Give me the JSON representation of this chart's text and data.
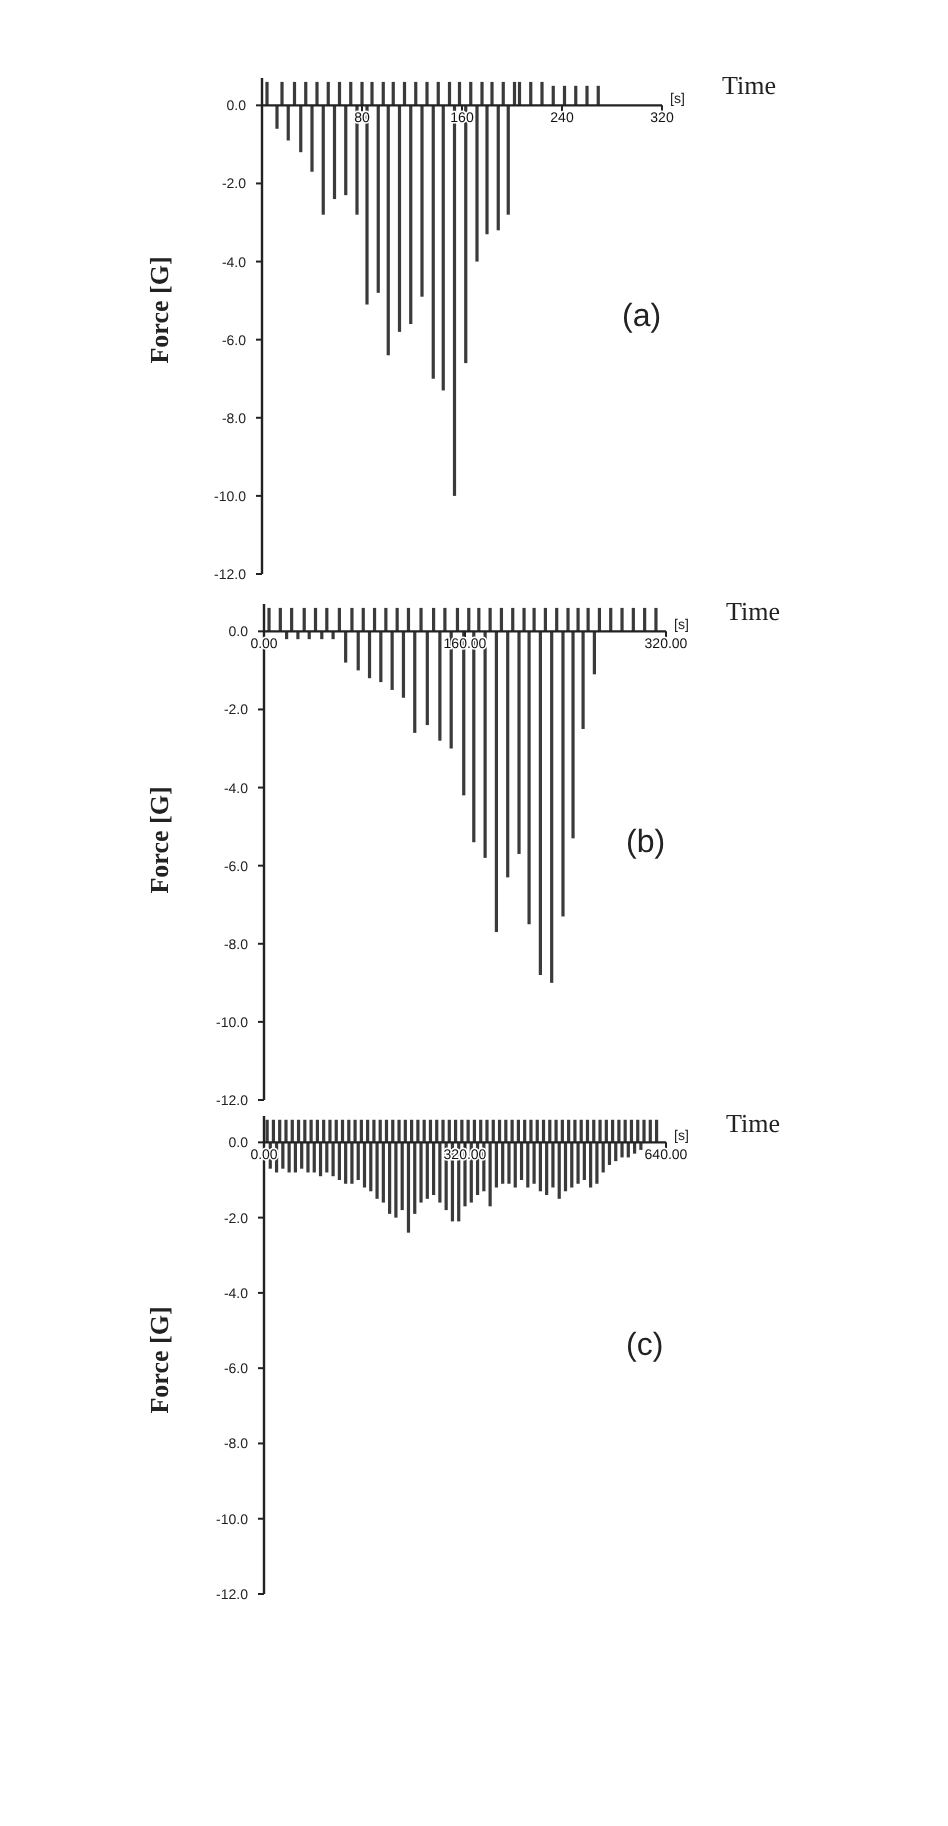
{
  "chart_data": [
    {
      "type": "bar",
      "xlabel": "Time",
      "ylabel": "Force [G]",
      "annotations": [
        "[s]",
        "(a)"
      ],
      "color": "#3a3a3a",
      "xlim": [
        0,
        320
      ],
      "ylim": [
        -12,
        0.7
      ],
      "xticks": [
        80,
        160,
        240,
        320
      ],
      "yticks": [
        {
          "value": 0,
          "label": "0.0"
        },
        {
          "value": -2,
          "label": "-2.0"
        },
        {
          "value": -4,
          "label": "-4.0"
        },
        {
          "value": -6,
          "label": "-6.0"
        },
        {
          "value": -8,
          "label": "-8.0"
        },
        {
          "value": -10,
          "label": "-10.0"
        },
        {
          "value": -12,
          "label": "-12.0"
        }
      ],
      "x": [
        4,
        12,
        16,
        21,
        26,
        31,
        35,
        40,
        44,
        49,
        53,
        58,
        62,
        67,
        71,
        76,
        80,
        84,
        88,
        93,
        97,
        101,
        105,
        110,
        114,
        119,
        123,
        128,
        132,
        137,
        141,
        145,
        150,
        154,
        158,
        163,
        167,
        172,
        176,
        180,
        184,
        189,
        193,
        197,
        202,
        206,
        215,
        224,
        233,
        242,
        251,
        260,
        269
      ],
      "values": [
        0.6,
        -0.6,
        0.6,
        -0.9,
        0.6,
        -1.2,
        0.6,
        -1.7,
        0.6,
        -2.8,
        0.6,
        -2.4,
        0.6,
        -2.3,
        0.6,
        -2.8,
        0.6,
        -5.1,
        0.6,
        -4.8,
        0.6,
        -6.4,
        0.6,
        -5.8,
        0.6,
        -5.6,
        0.6,
        -4.9,
        0.6,
        -7.0,
        0.6,
        -7.3,
        0.6,
        -10.0,
        0.6,
        -6.6,
        0.6,
        -4.0,
        0.6,
        -3.3,
        0.6,
        -3.2,
        0.6,
        -2.8,
        0.6,
        0.6,
        0.6,
        0.6,
        0.5,
        0.5,
        0.5,
        0.5,
        0.5
      ]
    },
    {
      "type": "bar",
      "xlabel": "Time",
      "ylabel": "Force [G]",
      "annotations": [
        "[s]",
        "(b)"
      ],
      "color": "#3a3a3a",
      "xlim": [
        0,
        320
      ],
      "ylim": [
        -12,
        0.7
      ],
      "xticks": [
        {
          "value": 0,
          "label": "0.00"
        },
        {
          "value": 160,
          "label": "160.00"
        },
        {
          "value": 320,
          "label": "320.00"
        }
      ],
      "yticks": [
        {
          "value": 0,
          "label": "0.0"
        },
        {
          "value": -2,
          "label": "-2.0"
        },
        {
          "value": -4,
          "label": "-4.0"
        },
        {
          "value": -6,
          "label": "-6.0"
        },
        {
          "value": -8,
          "label": "-8.0"
        },
        {
          "value": -10,
          "label": "-10.0"
        },
        {
          "value": -12,
          "label": "-12.0"
        }
      ],
      "x": [
        4,
        13,
        18,
        22,
        27,
        32,
        36,
        41,
        46,
        50,
        55,
        60,
        65,
        70,
        75,
        79,
        84,
        88,
        93,
        97,
        102,
        106,
        111,
        115,
        120,
        125,
        130,
        135,
        140,
        144,
        149,
        154,
        159,
        163,
        167,
        171,
        176,
        180,
        185,
        189,
        194,
        198,
        203,
        207,
        211,
        215,
        220,
        224,
        229,
        233,
        238,
        242,
        246,
        250,
        254,
        258,
        263,
        267,
        276,
        285,
        294,
        303,
        312
      ],
      "values": [
        0.6,
        0.6,
        -0.2,
        0.6,
        -0.2,
        0.6,
        -0.2,
        0.6,
        -0.2,
        0.6,
        -0.2,
        0.6,
        -0.8,
        0.6,
        -1.0,
        0.6,
        -1.2,
        0.6,
        -1.3,
        0.6,
        -1.5,
        0.6,
        -1.7,
        0.6,
        -2.6,
        0.6,
        -2.4,
        0.6,
        -2.8,
        0.6,
        -3.0,
        0.6,
        -4.2,
        0.6,
        -5.4,
        0.6,
        -5.8,
        0.6,
        -7.7,
        0.6,
        -6.3,
        0.6,
        -5.7,
        0.6,
        -7.5,
        0.6,
        -8.8,
        0.6,
        -9.0,
        0.6,
        -7.3,
        0.6,
        -5.3,
        0.6,
        -2.5,
        0.6,
        -1.1,
        0.6,
        0.6,
        0.6,
        0.6,
        0.6,
        0.6
      ]
    },
    {
      "type": "bar",
      "xlabel": "Time",
      "ylabel": "Force [G]",
      "annotations": [
        "[s]",
        "(c)"
      ],
      "color": "#3a3a3a",
      "xlim": [
        0,
        640
      ],
      "ylim": [
        -12,
        0.7
      ],
      "xticks": [
        {
          "value": 0,
          "label": "0.00"
        },
        {
          "value": 320,
          "label": "320.00"
        },
        {
          "value": 640,
          "label": "640.00"
        }
      ],
      "yticks": [
        {
          "value": 0,
          "label": "0.0"
        },
        {
          "value": -2,
          "label": "-2.0"
        },
        {
          "value": -4,
          "label": "-4.0"
        },
        {
          "value": -6,
          "label": "-6.0"
        },
        {
          "value": -8,
          "label": "-8.0"
        },
        {
          "value": -10,
          "label": "-10.0"
        },
        {
          "value": -12,
          "label": "-12.0"
        }
      ],
      "x": [
        5,
        10,
        15,
        20,
        25,
        30,
        35,
        40,
        45,
        50,
        55,
        60,
        65,
        70,
        75,
        80,
        85,
        90,
        95,
        100,
        105,
        110,
        115,
        120,
        125,
        130,
        135,
        140,
        145,
        150,
        155,
        160,
        165,
        170,
        175,
        180,
        185,
        190,
        195,
        200,
        205,
        210,
        215,
        220,
        225,
        230,
        235,
        240,
        245,
        250,
        255,
        260,
        265,
        270,
        275,
        280,
        285,
        290,
        295,
        300,
        305,
        310,
        315,
        320,
        325,
        330,
        335,
        340,
        345,
        350,
        355,
        360,
        365,
        370,
        375,
        380,
        385,
        390,
        395,
        400,
        405,
        410,
        415,
        420,
        425,
        430,
        435,
        440,
        445,
        450,
        455,
        460,
        465,
        470,
        475,
        480,
        485,
        490,
        495,
        500,
        505,
        510,
        515,
        520,
        525,
        530,
        535,
        540,
        545,
        550,
        555,
        560,
        565,
        570,
        575,
        580,
        585,
        590,
        595,
        600,
        605,
        615,
        625
      ],
      "values": [
        0.6,
        -0.7,
        0.6,
        -0.8,
        0.6,
        -0.7,
        0.6,
        -0.8,
        0.6,
        -0.8,
        0.6,
        -0.7,
        0.6,
        -0.8,
        0.6,
        -0.8,
        0.6,
        -0.9,
        0.6,
        -0.8,
        0.6,
        -0.9,
        0.6,
        -1.0,
        0.6,
        -1.1,
        0.6,
        -1.1,
        0.6,
        -1.0,
        0.6,
        -1.2,
        0.6,
        -1.3,
        0.6,
        -1.5,
        0.6,
        -1.6,
        0.6,
        -1.9,
        0.6,
        -2.0,
        0.6,
        -1.8,
        0.6,
        -2.4,
        0.6,
        -1.9,
        0.6,
        -1.6,
        0.6,
        -1.5,
        0.6,
        -1.4,
        0.6,
        -1.6,
        0.6,
        -1.8,
        0.6,
        -2.1,
        0.6,
        -2.1,
        0.6,
        -1.7,
        0.6,
        -1.6,
        0.6,
        -1.4,
        0.6,
        -1.3,
        0.6,
        -1.7,
        0.6,
        -1.2,
        0.6,
        -1.1,
        0.6,
        -1.1,
        0.6,
        -1.2,
        0.6,
        -1.0,
        0.6,
        -1.2,
        0.6,
        -1.1,
        0.6,
        -1.3,
        0.6,
        -1.4,
        0.6,
        -1.2,
        0.6,
        -1.5,
        0.6,
        -1.3,
        0.6,
        -1.2,
        0.6,
        -1.1,
        0.6,
        -1.0,
        0.6,
        -1.2,
        0.6,
        -1.1,
        0.6,
        -0.8,
        0.6,
        -0.6,
        0.6,
        -0.5,
        0.6,
        -0.4,
        0.6,
        -0.4,
        0.6,
        -0.3,
        0.6,
        -0.2,
        0.6,
        0.6,
        0.6
      ]
    }
  ]
}
